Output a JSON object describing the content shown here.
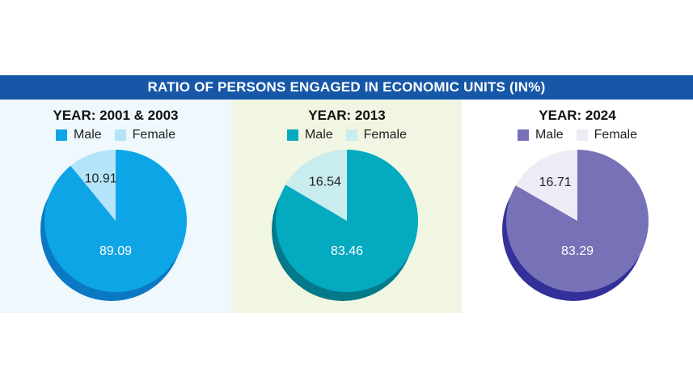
{
  "banner": {
    "title": "RATIO OF PERSONS ENGAGED IN ECONOMIC UNITS (IN%)"
  },
  "chart_data": [
    {
      "type": "pie",
      "title": "YEAR: 2001 & 2003",
      "labels": [
        "Male",
        "Female"
      ],
      "values": [
        89.09,
        10.91
      ],
      "value_labels": [
        "89.09",
        "10.91"
      ],
      "colors": [
        "#0ea5e6",
        "#b4e4f9"
      ],
      "shadow_color": "#0a78c2",
      "panel_background": "#eef8fd",
      "legend": "top"
    },
    {
      "type": "pie",
      "title": "YEAR: 2013",
      "labels": [
        "Male",
        "Female"
      ],
      "values": [
        83.46,
        16.54
      ],
      "value_labels": [
        "83.46",
        "16.54"
      ],
      "colors": [
        "#04aac0",
        "#c9ecee"
      ],
      "shadow_color": "#04798a",
      "panel_background": "#f0f6e2",
      "legend": "top"
    },
    {
      "type": "pie",
      "title": "YEAR: 2024",
      "labels": [
        "Male",
        "Female"
      ],
      "values": [
        83.29,
        16.71
      ],
      "value_labels": [
        "83.29",
        "16.71"
      ],
      "colors": [
        "#7771b7",
        "#ecebf6"
      ],
      "shadow_color": "#33309a",
      "panel_background": "#ffffff",
      "legend": "top"
    }
  ]
}
